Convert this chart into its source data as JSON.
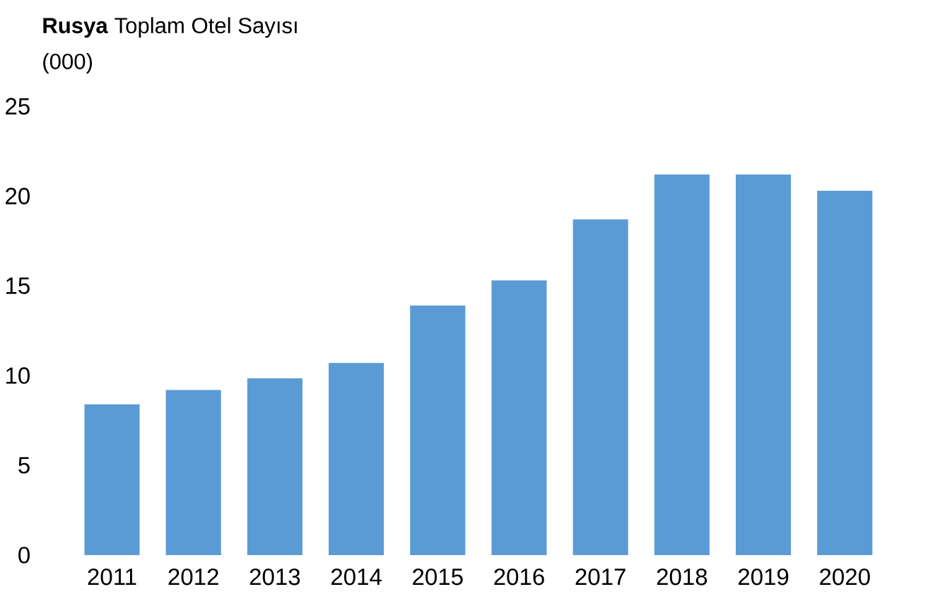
{
  "chart_data": {
    "type": "bar",
    "title": "**Rusya** Toplam Otel Sayısı",
    "ylabel": "(000)",
    "categories": [
      "2011",
      "2012",
      "2013",
      "2014",
      "2015",
      "2016",
      "2017",
      "2018",
      "2019",
      "2020"
    ],
    "values": [
      8.4,
      9.2,
      9.85,
      10.7,
      13.9,
      15.3,
      18.7,
      21.2,
      21.2,
      20.3
    ],
    "color": "#5b9bd5",
    "ylim": [
      0,
      25
    ],
    "yticks": [
      0,
      5,
      10,
      15,
      20,
      25
    ],
    "grid": false
  }
}
